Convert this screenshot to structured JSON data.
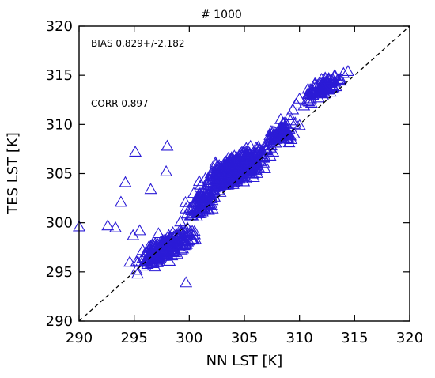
{
  "chart_data": {
    "type": "scatter",
    "title": "#          1000",
    "xlabel": "NN LST [K]",
    "ylabel": "TES LST [K]",
    "xlim": [
      290,
      320
    ],
    "ylim": [
      290,
      320
    ],
    "xticks": [
      "290",
      "295",
      "300",
      "305",
      "310",
      "315",
      "320"
    ],
    "yticks": [
      "290",
      "295",
      "300",
      "305",
      "310",
      "315",
      "320"
    ],
    "marker": "open-triangle",
    "marker_color": "#2b1bd6",
    "reference_line": "1:1 dashed",
    "annotations": [
      "BIAS 0.829+/-2.182",
      "CORR 0.897"
    ],
    "series": [
      {
        "points_summary": "1000 points clustered along 1:1 line, centered near (304,305)",
        "x": [
          290.0,
          292.6,
          293.3,
          293.8,
          294.2,
          294.9,
          295.2,
          295.5,
          296.1,
          296.3,
          296.8,
          297.0,
          297.2,
          297.4,
          297.6,
          297.8,
          298.0,
          298.2,
          298.5,
          298.9,
          299.2,
          299.5,
          299.8,
          300.1,
          300.4,
          300.7,
          301.0,
          301.3,
          301.6,
          301.9,
          302.2,
          302.5,
          302.8,
          303.1,
          303.4,
          303.7,
          304.0,
          304.3,
          304.6,
          304.9,
          305.2,
          305.5,
          305.8,
          306.1,
          306.4,
          306.7,
          307.0,
          307.3,
          307.6,
          307.9,
          308.2,
          308.5,
          308.8,
          309.1,
          309.4,
          309.7,
          310.0,
          310.4,
          310.8,
          311.2,
          311.6,
          312.0,
          312.4,
          312.8,
          313.2,
          313.6,
          314.0,
          314.4,
          295.1,
          298.0,
          297.9,
          296.5,
          294.6,
          295.3,
          299.7,
          300.3
        ],
        "y": [
          299.6,
          299.7,
          299.5,
          302.1,
          304.1,
          298.7,
          296.0,
          299.2,
          296.7,
          297.5,
          297.3,
          296.4,
          298.9,
          297.6,
          296.6,
          298.3,
          297.0,
          296.1,
          299.0,
          297.9,
          300.1,
          298.8,
          300.9,
          301.5,
          303.0,
          300.6,
          302.7,
          303.3,
          302.2,
          304.4,
          304.7,
          303.8,
          305.2,
          305.9,
          304.6,
          306.3,
          305.5,
          306.6,
          304.9,
          305.8,
          306.9,
          305.3,
          307.1,
          306.1,
          307.4,
          306.6,
          307.9,
          308.5,
          307.2,
          309.0,
          309.6,
          309.1,
          310.1,
          310.9,
          311.5,
          312.1,
          312.6,
          311.9,
          313.1,
          313.4,
          314.0,
          314.6,
          313.8,
          314.2,
          315.0,
          314.6,
          315.2,
          315.4,
          307.2,
          307.8,
          305.2,
          303.4,
          296.0,
          294.8,
          293.9,
          298.3
        ]
      }
    ]
  }
}
